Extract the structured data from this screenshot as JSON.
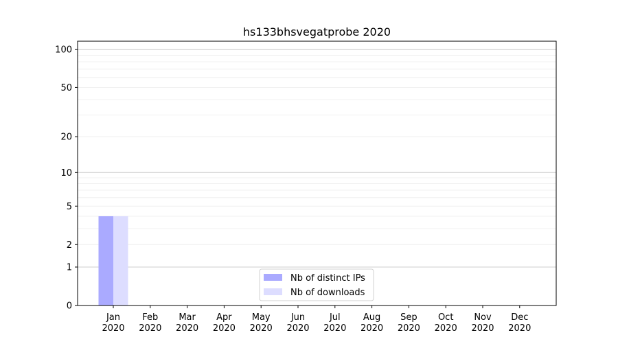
{
  "chart_data": {
    "type": "bar",
    "title": "hs133bhsvegatprobe 2020",
    "xlabel": "",
    "ylabel": "",
    "y_scale": "log(1+y)",
    "ylim": [
      0,
      116
    ],
    "y_ticks": [
      0,
      1,
      2,
      5,
      10,
      20,
      50,
      100
    ],
    "grid": true,
    "legend_position": "bottom-center",
    "categories": [
      [
        "Jan",
        "2020"
      ],
      [
        "Feb",
        "2020"
      ],
      [
        "Mar",
        "2020"
      ],
      [
        "Apr",
        "2020"
      ],
      [
        "May",
        "2020"
      ],
      [
        "Jun",
        "2020"
      ],
      [
        "Jul",
        "2020"
      ],
      [
        "Aug",
        "2020"
      ],
      [
        "Sep",
        "2020"
      ],
      [
        "Oct",
        "2020"
      ],
      [
        "Nov",
        "2020"
      ],
      [
        "Dec",
        "2020"
      ]
    ],
    "series": [
      {
        "name": "Nb of distinct IPs",
        "color": "#aaaaff",
        "values": [
          4,
          0,
          0,
          0,
          0,
          0,
          0,
          0,
          0,
          0,
          0,
          0
        ]
      },
      {
        "name": "Nb of downloads",
        "color": "#ddddff",
        "values": [
          4,
          0,
          0,
          0,
          0,
          0,
          0,
          0,
          0,
          0,
          0,
          0
        ]
      }
    ]
  }
}
